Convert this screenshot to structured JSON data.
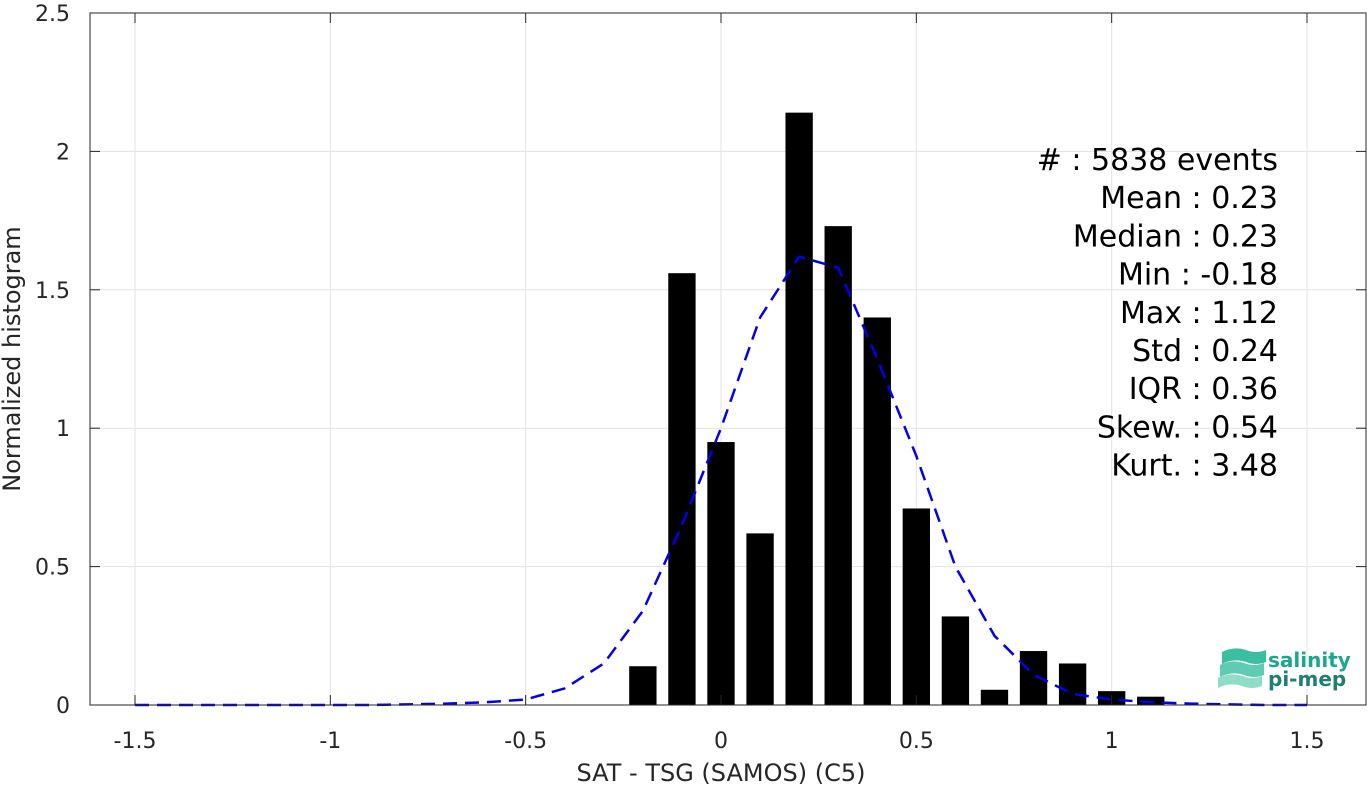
{
  "chart_data": {
    "type": "bar",
    "xlabel": "SAT - TSG (SAMOS) (C5)",
    "ylabel": "Normalized histogram",
    "xlim": [
      -1.5,
      1.5
    ],
    "ylim": [
      0,
      2.5
    ],
    "grid": true,
    "x_ticks": [
      "-1.5",
      "-1",
      "-0.5",
      "0",
      "0.5",
      "1",
      "1.5"
    ],
    "y_ticks": [
      "0",
      "0.5",
      "1",
      "1.5",
      "2",
      "2.5"
    ],
    "bar_width": 0.07,
    "bars": {
      "x": [
        -0.2,
        -0.1,
        0.0,
        0.1,
        0.2,
        0.3,
        0.4,
        0.5,
        0.6,
        0.7,
        0.8,
        0.9,
        1.0,
        1.1
      ],
      "values": [
        0.14,
        1.56,
        0.95,
        0.62,
        2.14,
        1.73,
        1.4,
        0.71,
        0.32,
        0.055,
        0.195,
        0.15,
        0.05,
        0.03
      ]
    },
    "fit_curve": {
      "style": "dashed",
      "color": "#0000ee",
      "x": [
        -1.5,
        -1.4,
        -1.3,
        -1.2,
        -1.1,
        -1.0,
        -0.9,
        -0.8,
        -0.7,
        -0.6,
        -0.5,
        -0.4,
        -0.3,
        -0.2,
        -0.1,
        0.0,
        0.1,
        0.2,
        0.3,
        0.4,
        0.5,
        0.6,
        0.7,
        0.8,
        0.9,
        1.0,
        1.1,
        1.2,
        1.3,
        1.4,
        1.5
      ],
      "y": [
        0,
        0,
        0,
        0,
        0,
        0,
        0,
        0.002,
        0.005,
        0.01,
        0.02,
        0.06,
        0.15,
        0.34,
        0.65,
        1.0,
        1.4,
        1.62,
        1.58,
        1.25,
        0.9,
        0.5,
        0.25,
        0.11,
        0.04,
        0.02,
        0.01,
        0.005,
        0.002,
        0,
        0
      ]
    },
    "annotations": [
      "#  : 5838 events",
      "Mean : 0.23",
      "Median : 0.23",
      "Min : -0.18",
      "Max : 1.12",
      "Std : 0.24",
      "IQR : 0.36",
      "Skew. : 0.54",
      "Kurt. : 3.48"
    ],
    "bar_color": "#000000"
  },
  "logo": {
    "line1": "salinity",
    "line2": "pi-mep",
    "color": "#1aa68f"
  }
}
